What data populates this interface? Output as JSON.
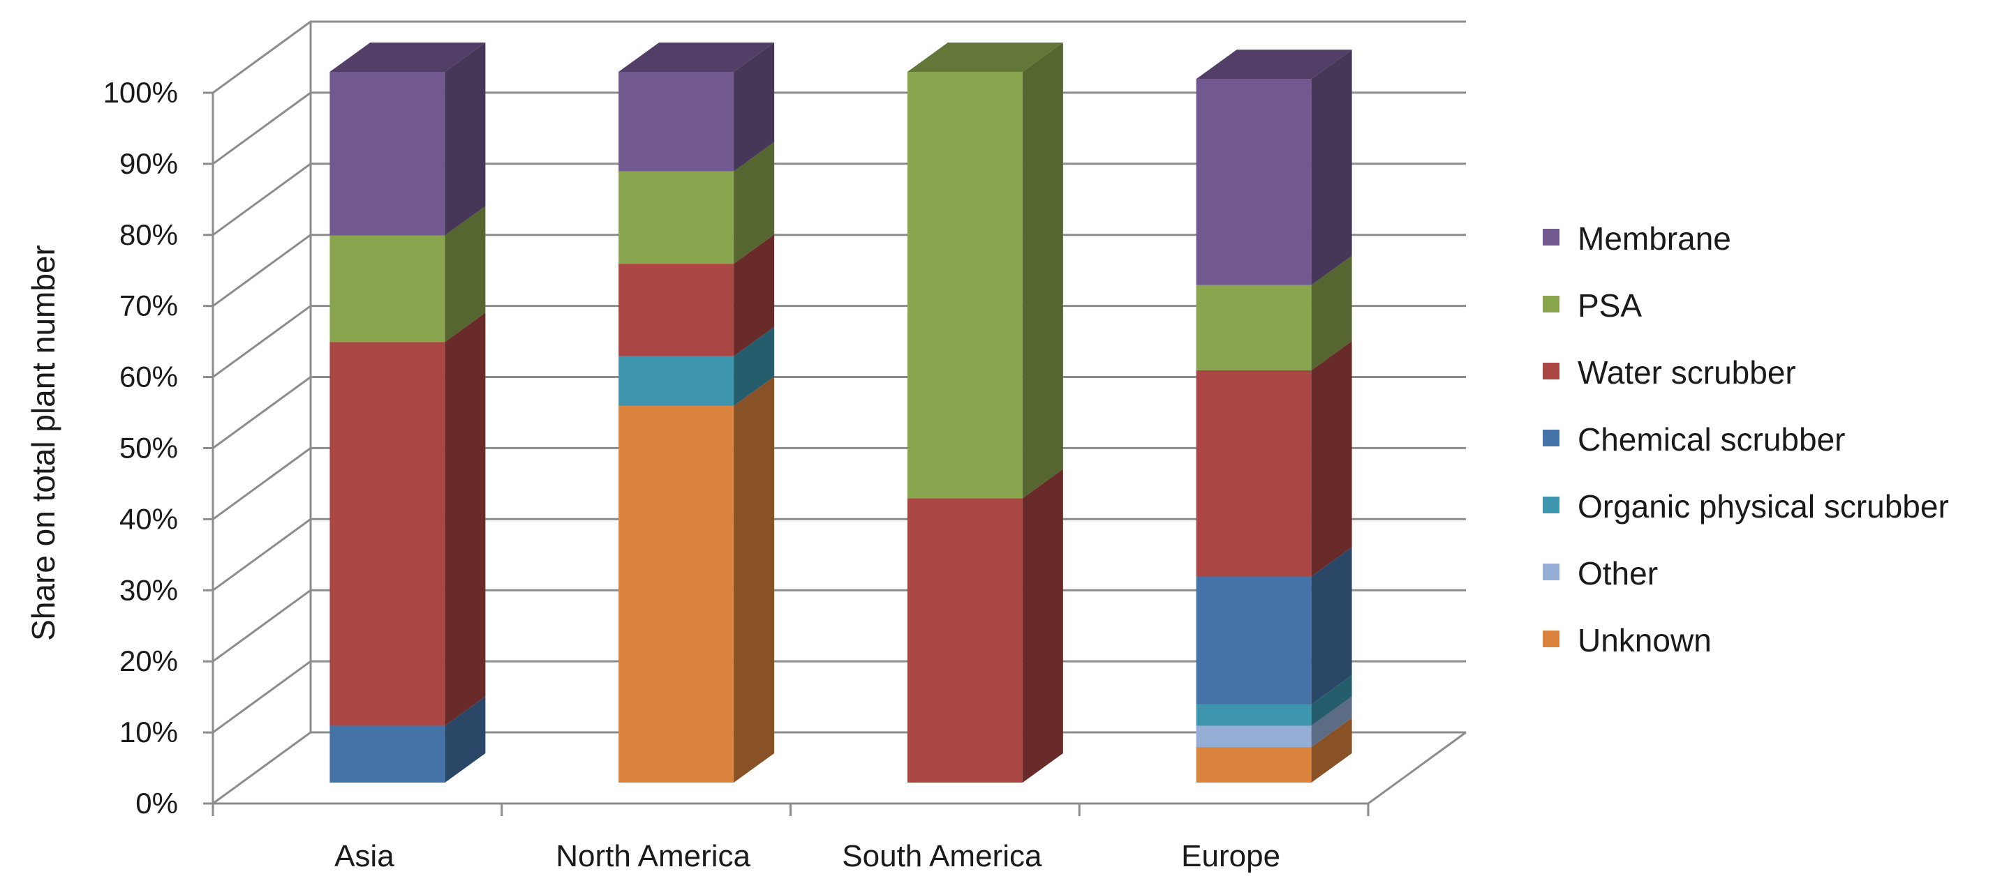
{
  "chart_data": {
    "type": "bar",
    "stacked": true,
    "style": "3d-stacked-100-percent-columns",
    "title": "",
    "xlabel": "",
    "ylabel": "Share on total plant number",
    "ylim": [
      0,
      100
    ],
    "yticks": [
      "0%",
      "10%",
      "20%",
      "30%",
      "40%",
      "50%",
      "60%",
      "70%",
      "80%",
      "90%",
      "100%"
    ],
    "grid": true,
    "legend_position": "right",
    "categories": [
      "Asia",
      "North America",
      "South America",
      "Europe"
    ],
    "series": [
      {
        "name": "Unknown",
        "color": "#DB843D",
        "values": [
          0,
          53,
          0,
          5
        ]
      },
      {
        "name": "Other",
        "color": "#95AED6",
        "values": [
          0,
          0,
          0,
          3
        ]
      },
      {
        "name": "Organic physical scrubber",
        "color": "#3D96AE",
        "values": [
          0,
          7,
          0,
          3
        ]
      },
      {
        "name": "Chemical scrubber",
        "color": "#4572A7",
        "values": [
          8,
          0,
          0,
          18
        ]
      },
      {
        "name": "Water scrubber",
        "color": "#AA4643",
        "values": [
          54,
          13,
          40,
          29
        ]
      },
      {
        "name": "PSA",
        "color": "#89A54E",
        "values": [
          15,
          13,
          60,
          12
        ]
      },
      {
        "name": "Membrane",
        "color": "#71588F",
        "values": [
          23,
          14,
          0,
          29
        ]
      }
    ],
    "legend_order": [
      "Membrane",
      "PSA",
      "Water scrubber",
      "Chemical scrubber",
      "Organic physical scrubber",
      "Other",
      "Unknown"
    ]
  }
}
